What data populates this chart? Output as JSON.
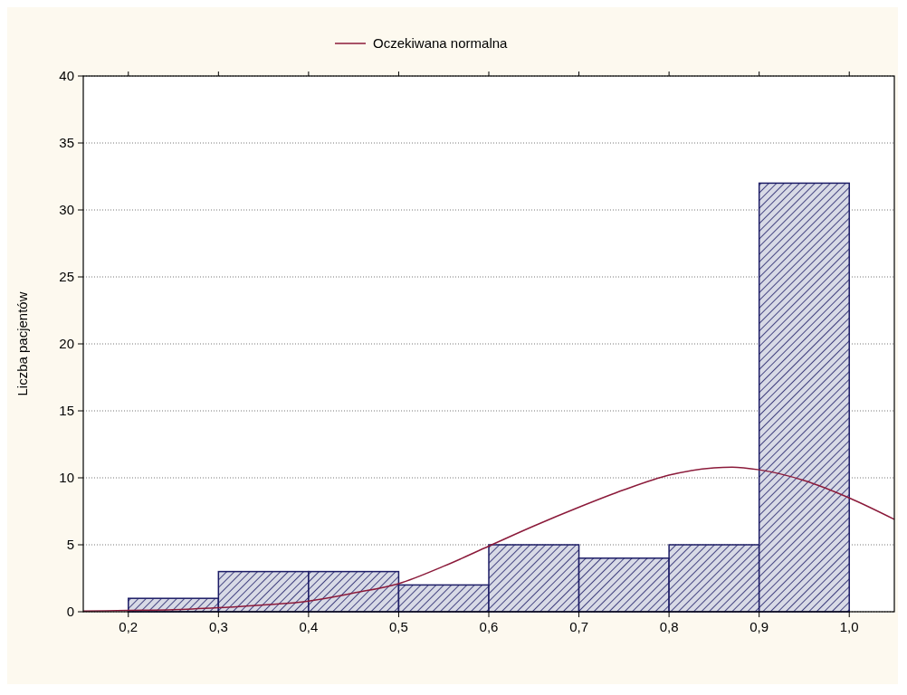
{
  "chart_data": {
    "type": "histogram",
    "ylabel": "Liczba pacjentów",
    "bins": [
      0.2,
      0.3,
      0.4,
      0.5,
      0.6,
      0.7,
      0.8,
      0.9,
      1.0
    ],
    "values": [
      1,
      3,
      3,
      2,
      5,
      4,
      5,
      32
    ],
    "color": "#1c1c66",
    "series": [
      {
        "type": "line",
        "name": "Oczekiwana normalna",
        "color": "#8b1a3a",
        "x": [
          0.15,
          0.2,
          0.25,
          0.3,
          0.35,
          0.4,
          0.45,
          0.5,
          0.55,
          0.6,
          0.65,
          0.7,
          0.75,
          0.8,
          0.85,
          0.87,
          0.9,
          0.95,
          1.0,
          1.05
        ],
        "values": [
          0.05,
          0.1,
          0.15,
          0.3,
          0.5,
          0.8,
          1.4,
          2.1,
          3.4,
          4.9,
          6.4,
          7.8,
          9.1,
          10.2,
          10.75,
          10.8,
          10.6,
          9.8,
          8.5,
          6.9
        ]
      }
    ],
    "xlim": [
      0.15,
      1.05
    ],
    "xticks": [
      {
        "value": 0.2,
        "label": "0,2"
      },
      {
        "value": 0.3,
        "label": "0,3"
      },
      {
        "value": 0.4,
        "label": "0,4"
      },
      {
        "value": 0.5,
        "label": "0,5"
      },
      {
        "value": 0.6,
        "label": "0,6"
      },
      {
        "value": 0.7,
        "label": "0,7"
      },
      {
        "value": 0.8,
        "label": "0,8"
      },
      {
        "value": 0.9,
        "label": "0,9"
      },
      {
        "value": 1.0,
        "label": "1,0"
      }
    ],
    "ylim": [
      0,
      40
    ],
    "yticks": [
      0,
      5,
      10,
      15,
      20,
      25,
      30,
      35,
      40
    ],
    "grid": "y",
    "legend": "top",
    "line_style": "solid",
    "marker": "none"
  }
}
